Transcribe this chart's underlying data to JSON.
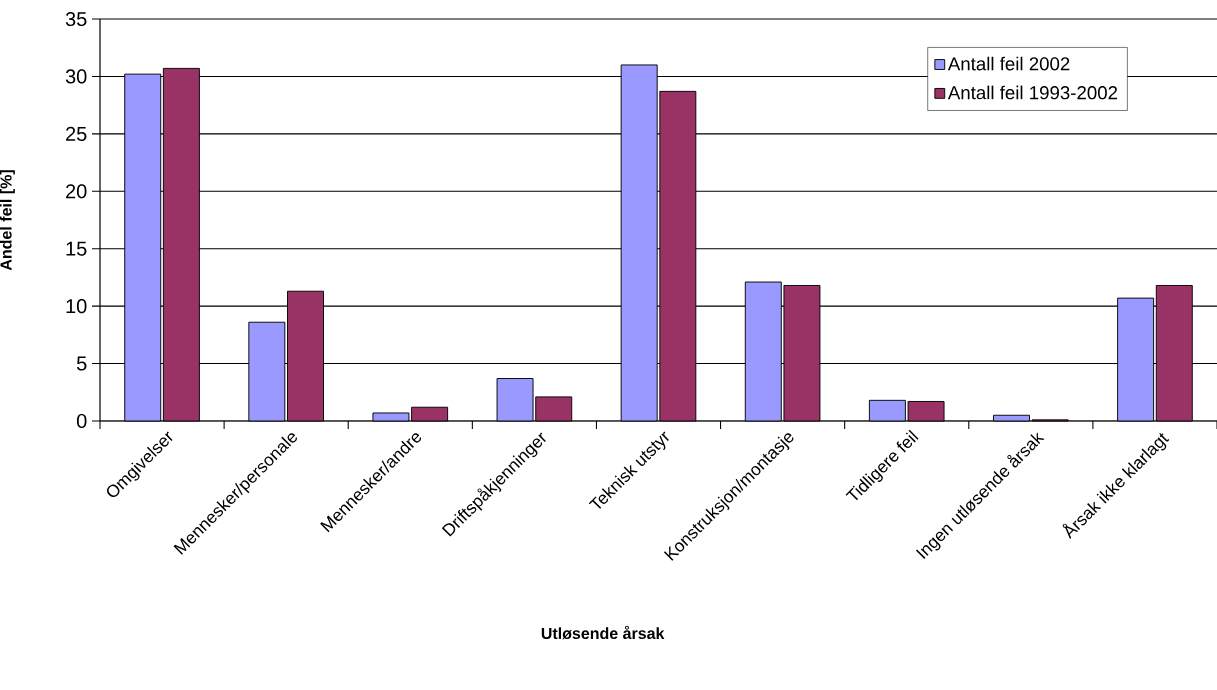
{
  "chart_data": {
    "type": "bar",
    "xlabel": "Utløsende årsak",
    "ylabel": "Andel feil [%]",
    "categories": [
      "Omgivelser",
      "Mennesker/personale",
      "Mennesker/andre",
      "Driftspåkjenninger",
      "Teknisk utstyr",
      "Konstruksjon/montasje",
      "Tidligere feil",
      "Ingen utløsende årsak",
      "Årsak ikke klarlagt"
    ],
    "series": [
      {
        "name": "Antall feil 2002",
        "color": "#9999ff",
        "values": [
          30.2,
          8.6,
          0.7,
          3.7,
          31.0,
          12.1,
          1.8,
          0.5,
          10.7
        ]
      },
      {
        "name": "Antall feil 1993-2002",
        "color": "#993366",
        "values": [
          30.7,
          11.3,
          1.2,
          2.1,
          28.7,
          11.8,
          1.7,
          0.1,
          11.8
        ]
      }
    ],
    "ylim": [
      0,
      35
    ],
    "yticks": [
      0,
      5,
      10,
      15,
      20,
      25,
      30,
      35
    ],
    "grid": "y",
    "legend": "top right"
  }
}
